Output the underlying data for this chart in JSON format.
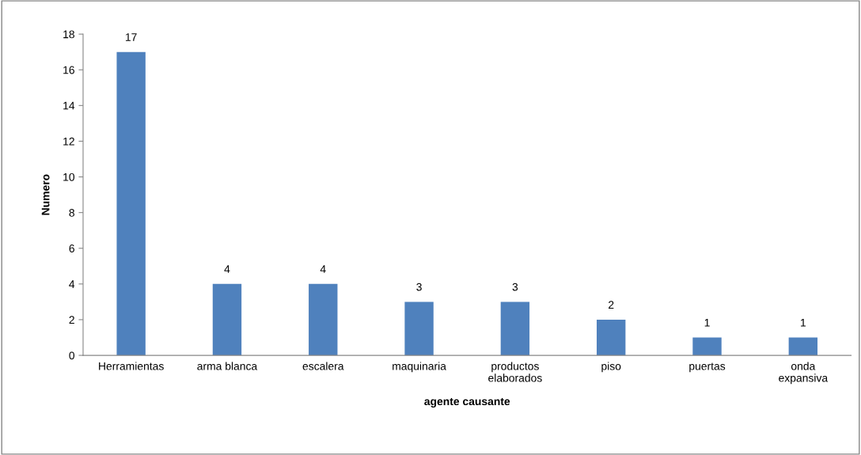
{
  "chart_data": {
    "type": "bar",
    "categories": [
      "Herramientas",
      "arma blanca",
      "escalera",
      "maquinaria",
      "productos\nelaborados",
      "piso",
      "puertas",
      "onda\nexpansiva"
    ],
    "values": [
      17,
      4,
      4,
      3,
      3,
      2,
      1,
      1
    ],
    "color": "#4f81bd",
    "xlabel": "agente causante",
    "ylabel": "Numero",
    "ylim": [
      0,
      18
    ],
    "yticks": [
      0,
      2,
      4,
      6,
      8,
      10,
      12,
      14,
      16,
      18
    ],
    "data_labels": true,
    "grid": false,
    "legend": false
  }
}
